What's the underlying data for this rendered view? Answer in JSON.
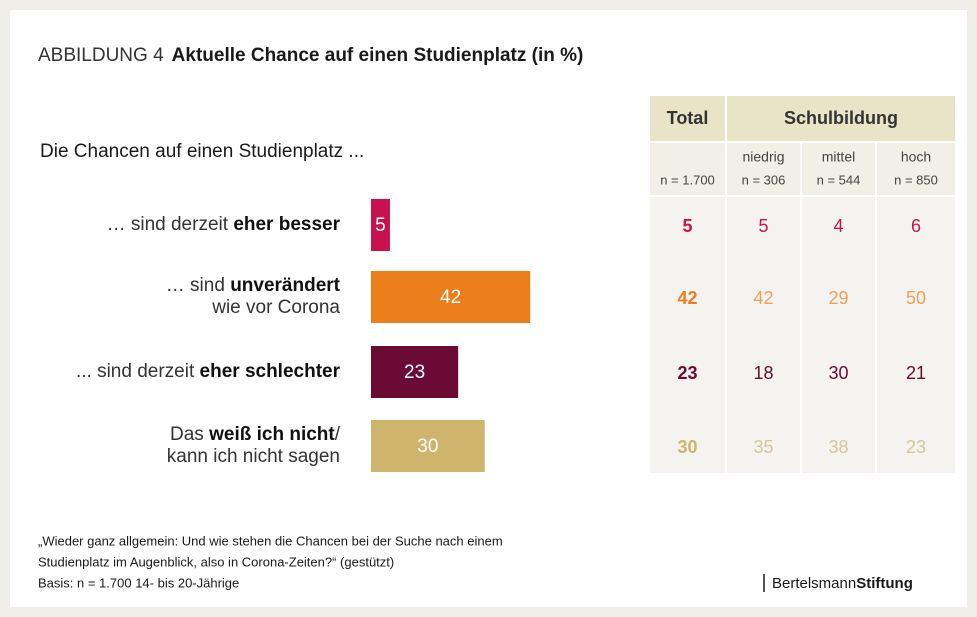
{
  "chart_data": {
    "type": "bar",
    "title_prefix": "ABBILDUNG 4",
    "title": "Aktuelle Chance auf einen Studienplatz (in %)",
    "subtitle": "Die Chancen auf einen Studienplatz ...",
    "categories": [
      [
        [
          {
            "text": "… sind derzeit ",
            "bold": false
          },
          {
            "text": "eher besser",
            "bold": true
          }
        ]
      ],
      [
        [
          {
            "text": "… sind ",
            "bold": false
          },
          {
            "text": "unverändert",
            "bold": true
          }
        ],
        [
          {
            "text": "wie vor Corona",
            "bold": false
          }
        ]
      ],
      [
        [
          {
            "text": "... sind derzeit ",
            "bold": false
          },
          {
            "text": "eher schlechter",
            "bold": true
          }
        ]
      ],
      [
        [
          {
            "text": "Das ",
            "bold": false
          },
          {
            "text": "weiß ich nicht",
            "bold": true
          },
          {
            "text": "/",
            "bold": false
          }
        ],
        [
          {
            "text": "kann ich nicht sagen",
            "bold": false
          }
        ]
      ]
    ],
    "values": [
      5,
      42,
      23,
      30
    ],
    "colors": [
      "#c8124e",
      "#ec7f1c",
      "#6b0a33",
      "#cfb46c"
    ]
  },
  "table": {
    "header": [
      "Total",
      "Schulbildung"
    ],
    "subheader": [
      "niedrig",
      "mittel",
      "hoch"
    ],
    "n_labels": [
      "n = 1.700",
      "n = 306",
      "n = 544",
      "n = 850"
    ],
    "rows": [
      {
        "total_color": "#c8124e",
        "color": "#c8124e",
        "cells": [
          5,
          5,
          4,
          6
        ]
      },
      {
        "total_color": "#ec7f1c",
        "color": "#eea158",
        "cells": [
          42,
          42,
          29,
          50
        ]
      },
      {
        "total_color": "#6b0a33",
        "color": "#6b0a33",
        "cells": [
          23,
          18,
          30,
          21
        ]
      },
      {
        "total_color": "#cfb46c",
        "color": "#d6c697",
        "cells": [
          30,
          35,
          38,
          23
        ]
      }
    ]
  },
  "footnote": [
    "„Wieder ganz allgemein: Und wie stehen die Chancen bei der Suche nach einem",
    "Studienplatz im Augenblick, also in Corona-Zeiten?“ (gestützt)",
    "Basis: n = 1.700 14- bis 20-Jährige"
  ],
  "logo": [
    "Bertelsmann",
    "Stiftung"
  ]
}
